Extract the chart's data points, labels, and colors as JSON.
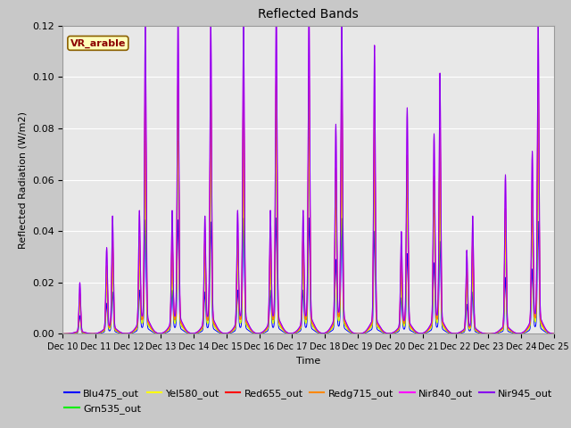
{
  "title": "Reflected Bands",
  "ylabel": "Reflected Radiation (W/m2)",
  "xlabel": "Time",
  "annotation_text": "VR_arable",
  "annotation_bg": "#FFFFBB",
  "annotation_border": "#8B6000",
  "annotation_text_color": "#8B0000",
  "ylim": [
    0,
    0.12
  ],
  "fig_facecolor": "#c8c8c8",
  "plot_facecolor": "#e8e8e8",
  "series": [
    {
      "label": "Blu475_out",
      "color": "#0000FF",
      "scale": 0.355
    },
    {
      "label": "Grn535_out",
      "color": "#00EE00",
      "scale": 0.6
    },
    {
      "label": "Yel580_out",
      "color": "#FFFF00",
      "scale": 0.6
    },
    {
      "label": "Red655_out",
      "color": "#FF0000",
      "scale": 0.79
    },
    {
      "label": "Redg715_out",
      "color": "#FF8800",
      "scale": 0.79
    },
    {
      "label": "Nir840_out",
      "color": "#FF00FF",
      "scale": 1.0
    },
    {
      "label": "Nir945_out",
      "color": "#8800EE",
      "scale": 1.0
    }
  ],
  "day_data": [
    {
      "day": 10,
      "nir_peak": 0.019,
      "has_double": false
    },
    {
      "day": 11,
      "nir_peak": 0.043,
      "has_double": true,
      "nir_peak2": 0.031
    },
    {
      "day": 12,
      "nir_peak": 0.118,
      "has_double": true,
      "nir_peak2": 0.043
    },
    {
      "day": 13,
      "nir_peak": 0.118,
      "has_double": true,
      "nir_peak2": 0.043
    },
    {
      "day": 14,
      "nir_peak": 0.116,
      "has_double": true,
      "nir_peak2": 0.041
    },
    {
      "day": 15,
      "nir_peak": 0.12,
      "has_double": true,
      "nir_peak2": 0.043
    },
    {
      "day": 16,
      "nir_peak": 0.12,
      "has_double": true,
      "nir_peak2": 0.043
    },
    {
      "day": 17,
      "nir_peak": 0.12,
      "has_double": true,
      "nir_peak2": 0.043
    },
    {
      "day": 18,
      "nir_peak": 0.119,
      "has_double": true,
      "nir_peak2": 0.075
    },
    {
      "day": 19,
      "nir_peak": 0.107,
      "has_double": false
    },
    {
      "day": 20,
      "nir_peak": 0.083,
      "has_double": true,
      "nir_peak2": 0.036
    },
    {
      "day": 21,
      "nir_peak": 0.095,
      "has_double": true,
      "nir_peak2": 0.072
    },
    {
      "day": 22,
      "nir_peak": 0.043,
      "has_double": true,
      "nir_peak2": 0.03
    },
    {
      "day": 23,
      "nir_peak": 0.059,
      "has_double": false
    },
    {
      "day": 24,
      "nir_peak": 0.116,
      "has_double": true,
      "nir_peak2": 0.065
    }
  ],
  "xtick_labels": [
    "Dec 10",
    "Dec 11",
    "Dec 12",
    "Dec 13",
    "Dec 14",
    "Dec 15",
    "Dec 16",
    "Dec 17",
    "Dec 18",
    "Dec 19",
    "Dec 20",
    "Dec 21",
    "Dec 22",
    "Dec 23",
    "Dec 24",
    "Dec 25"
  ],
  "xtick_positions": [
    10,
    11,
    12,
    13,
    14,
    15,
    16,
    17,
    18,
    19,
    20,
    21,
    22,
    23,
    24,
    25
  ]
}
